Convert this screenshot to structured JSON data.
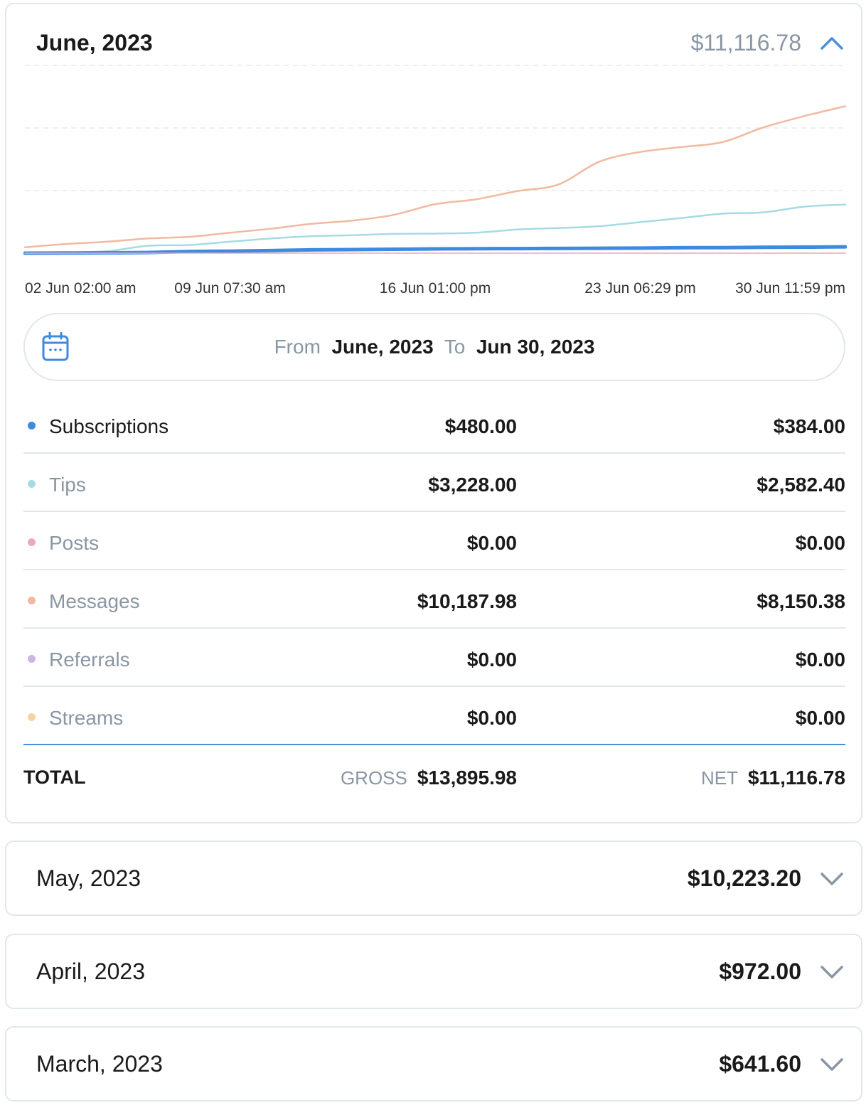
{
  "colors": {
    "subscriptions": "#3d8be0",
    "tips": "#a5dbe4",
    "posts": "#eda9c1",
    "messages": "#f2b9a1",
    "referrals": "#c9b6e3",
    "streams": "#f7d3a3",
    "accent": "#4a90d9",
    "muted": "#8a96a3",
    "border": "#e3e6ea"
  },
  "june": {
    "title": "June, 2023",
    "amount": "$11,116.78",
    "chevron_icon": "chevron-up-icon",
    "date_range": {
      "from_label": "From",
      "from_value": "June, 2023",
      "to_label": "To",
      "to_value": "Jun 30, 2023"
    },
    "rows": [
      {
        "label": "Subscriptions",
        "gross": "$480.00",
        "net": "$384.00",
        "color_key": "subscriptions"
      },
      {
        "label": "Tips",
        "gross": "$3,228.00",
        "net": "$2,582.40",
        "color_key": "tips"
      },
      {
        "label": "Posts",
        "gross": "$0.00",
        "net": "$0.00",
        "color_key": "posts"
      },
      {
        "label": "Messages",
        "gross": "$10,187.98",
        "net": "$8,150.38",
        "color_key": "messages"
      },
      {
        "label": "Referrals",
        "gross": "$0.00",
        "net": "$0.00",
        "color_key": "referrals"
      },
      {
        "label": "Streams",
        "gross": "$0.00",
        "net": "$0.00",
        "color_key": "streams"
      }
    ],
    "total": {
      "label": "TOTAL",
      "gross_label": "GROSS",
      "gross_value": "$13,895.98",
      "net_label": "NET",
      "net_value": "$11,116.78"
    }
  },
  "chart_data": {
    "type": "line",
    "x_tick_labels": [
      "02 Jun 02:00 am",
      "09 Jun 07:30 am",
      "16 Jun 01:00 pm",
      "23 Jun 06:29 pm",
      "30 Jun 11:59 pm"
    ],
    "x": [
      0,
      0.05,
      0.1,
      0.15,
      0.2,
      0.25,
      0.3,
      0.35,
      0.4,
      0.45,
      0.5,
      0.55,
      0.6,
      0.65,
      0.7,
      0.75,
      0.8,
      0.85,
      0.9,
      0.95,
      1.0
    ],
    "x_note": "fraction of the period from 02 Jun 02:00 am to 30 Jun 11:59 pm",
    "ylim": [
      0,
      11500
    ],
    "grid": true,
    "series": [
      {
        "color_key": "messages",
        "values": [
          360,
          560,
          700,
          900,
          1000,
          1250,
          1500,
          1800,
          2000,
          2350,
          3000,
          3300,
          3800,
          4200,
          5600,
          6200,
          6500,
          6800,
          7700,
          8400,
          9000
        ]
      },
      {
        "color_key": "tips",
        "values": [
          0,
          50,
          120,
          450,
          500,
          700,
          900,
          1040,
          1100,
          1180,
          1200,
          1250,
          1450,
          1540,
          1650,
          1900,
          2150,
          2420,
          2500,
          2850,
          2980
        ]
      },
      {
        "color_key": "subscriptions",
        "values": [
          0,
          10,
          20,
          40,
          100,
          120,
          160,
          200,
          220,
          240,
          260,
          270,
          280,
          290,
          300,
          310,
          330,
          340,
          360,
          370,
          384
        ]
      },
      {
        "color_key": "posts",
        "values": [
          0,
          0,
          0,
          0,
          0,
          0,
          0,
          0,
          0,
          0,
          0,
          0,
          0,
          0,
          0,
          0,
          0,
          0,
          0,
          0,
          0
        ]
      }
    ]
  },
  "collapsed_months": [
    {
      "title": "May, 2023",
      "amount": "$10,223.20",
      "chevron_icon": "chevron-down-icon"
    },
    {
      "title": "April, 2023",
      "amount": "$972.00",
      "chevron_icon": "chevron-down-icon"
    },
    {
      "title": "March, 2023",
      "amount": "$641.60",
      "chevron_icon": "chevron-down-icon"
    }
  ]
}
